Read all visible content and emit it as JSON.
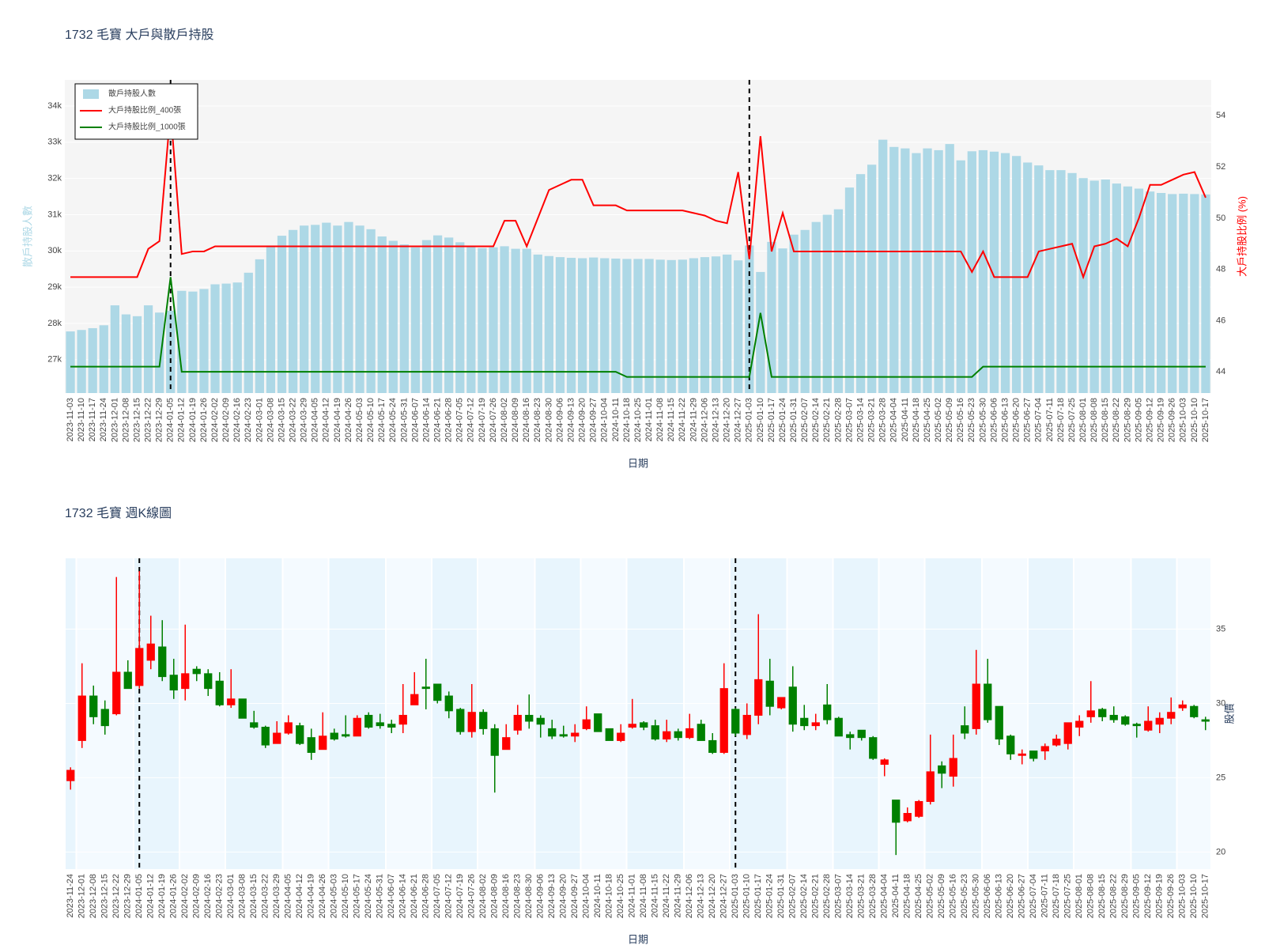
{
  "chart_data": [
    {
      "type": "bar_line",
      "title": "1732 毛寶 大戶與散戶持股",
      "x_label": "日期",
      "y_label": "散戶持股人數",
      "y2_label": "大戶持股比例 (%)",
      "categories": [
        "2023-11-03",
        "2023-11-10",
        "2023-11-17",
        "2023-11-24",
        "2023-12-01",
        "2023-12-08",
        "2023-12-15",
        "2023-12-22",
        "2023-12-29",
        "2024-01-05",
        "2024-01-12",
        "2024-01-19",
        "2024-01-26",
        "2024-02-02",
        "2024-02-09",
        "2024-02-16",
        "2024-02-23",
        "2024-03-01",
        "2024-03-08",
        "2024-03-15",
        "2024-03-22",
        "2024-03-29",
        "2024-04-05",
        "2024-04-12",
        "2024-04-19",
        "2024-04-26",
        "2024-05-03",
        "2024-05-10",
        "2024-05-17",
        "2024-05-24",
        "2024-05-31",
        "2024-06-07",
        "2024-06-14",
        "2024-06-21",
        "2024-06-28",
        "2024-07-05",
        "2024-07-12",
        "2024-07-19",
        "2024-07-26",
        "2024-08-02",
        "2024-08-09",
        "2024-08-16",
        "2024-08-23",
        "2024-08-30",
        "2024-09-06",
        "2024-09-13",
        "2024-09-20",
        "2024-09-27",
        "2024-10-04",
        "2024-10-11",
        "2024-10-18",
        "2024-10-25",
        "2024-11-01",
        "2024-11-08",
        "2024-11-15",
        "2024-11-22",
        "2024-11-29",
        "2024-12-06",
        "2024-12-13",
        "2024-12-20",
        "2024-12-27",
        "2025-01-03",
        "2025-01-10",
        "2025-01-17",
        "2025-01-24",
        "2025-01-31",
        "2025-02-07",
        "2025-02-14",
        "2025-02-21",
        "2025-02-28",
        "2025-03-07",
        "2025-03-14",
        "2025-03-21",
        "2025-03-28",
        "2025-04-04",
        "2025-04-11",
        "2025-04-18",
        "2025-04-25",
        "2025-05-02",
        "2025-05-09",
        "2025-05-16",
        "2025-05-23",
        "2025-05-30",
        "2025-06-06",
        "2025-06-13",
        "2025-06-20",
        "2025-06-27",
        "2025-07-04",
        "2025-07-11",
        "2025-07-18",
        "2025-07-25",
        "2025-08-01",
        "2025-08-08",
        "2025-08-15",
        "2025-08-22",
        "2025-08-29",
        "2025-09-05",
        "2025-09-12",
        "2025-09-19",
        "2025-09-26",
        "2025-10-03",
        "2025-10-10",
        "2025-10-17"
      ],
      "series": [
        {
          "name": "散戶持股人數",
          "type": "bar",
          "color": "#add8e6",
          "values": [
            27780,
            27820,
            27870,
            27950,
            28500,
            28250,
            28200,
            28500,
            28300,
            28350,
            28900,
            28880,
            28950,
            29080,
            29100,
            29130,
            29400,
            29770,
            30150,
            30420,
            30580,
            30700,
            30720,
            30780,
            30700,
            30800,
            30700,
            30600,
            30400,
            30280,
            30180,
            30100,
            30300,
            30430,
            30370,
            30240,
            30120,
            30080,
            30100,
            30130,
            30060,
            30060,
            29900,
            29860,
            29830,
            29810,
            29800,
            29820,
            29800,
            29790,
            29780,
            29780,
            29780,
            29760,
            29750,
            29760,
            29800,
            29830,
            29850,
            29900,
            29740,
            30150,
            29420,
            30250,
            30070,
            30450,
            30580,
            30800,
            31000,
            31150,
            31750,
            32120,
            32380,
            33070,
            32870,
            32830,
            32700,
            32830,
            32780,
            32950,
            32500,
            32750,
            32780,
            32740,
            32700,
            32620,
            32440,
            32360,
            32230,
            32230,
            32150,
            32010,
            31940,
            31970,
            31860,
            31780,
            31720,
            31640,
            31600,
            31570,
            31580,
            31570,
            31560
          ]
        },
        {
          "name": "大戶持股比例_400張",
          "type": "line",
          "axis": "y2",
          "color": "#ff0000",
          "values": [
            47.7,
            47.7,
            47.7,
            47.7,
            47.7,
            47.7,
            47.7,
            48.8,
            49.1,
            54.2,
            48.6,
            48.7,
            48.7,
            48.9,
            48.9,
            48.9,
            48.9,
            48.9,
            48.9,
            48.9,
            48.9,
            48.9,
            48.9,
            48.9,
            48.9,
            48.9,
            48.9,
            48.9,
            48.9,
            48.9,
            48.9,
            48.9,
            48.9,
            48.9,
            48.9,
            48.9,
            48.9,
            48.9,
            48.9,
            49.9,
            49.9,
            48.9,
            50.0,
            51.1,
            51.3,
            51.5,
            51.5,
            50.5,
            50.5,
            50.5,
            50.3,
            50.3,
            50.3,
            50.3,
            50.3,
            50.3,
            50.2,
            50.1,
            49.9,
            49.8,
            51.8,
            48.4,
            53.2,
            48.7,
            50.2,
            48.7,
            48.7,
            48.7,
            48.7,
            48.7,
            48.7,
            48.7,
            48.7,
            48.7,
            48.7,
            48.7,
            48.7,
            48.7,
            48.7,
            48.7,
            48.7,
            47.9,
            48.7,
            47.7,
            47.7,
            47.7,
            47.7,
            48.7,
            48.8,
            48.9,
            49.0,
            47.7,
            48.9,
            49.0,
            49.2,
            48.9,
            50.0,
            51.3,
            51.3,
            51.5,
            51.7,
            51.8,
            50.8
          ]
        },
        {
          "name": "大戶持股比例_1000張",
          "type": "line",
          "axis": "y2",
          "color": "#008000",
          "values": [
            44.2,
            44.2,
            44.2,
            44.2,
            44.2,
            44.2,
            44.2,
            44.2,
            44.2,
            47.7,
            44.0,
            44.0,
            44.0,
            44.0,
            44.0,
            44.0,
            44.0,
            44.0,
            44.0,
            44.0,
            44.0,
            44.0,
            44.0,
            44.0,
            44.0,
            44.0,
            44.0,
            44.0,
            44.0,
            44.0,
            44.0,
            44.0,
            44.0,
            44.0,
            44.0,
            44.0,
            44.0,
            44.0,
            44.0,
            44.0,
            44.0,
            44.0,
            44.0,
            44.0,
            44.0,
            44.0,
            44.0,
            44.0,
            44.0,
            44.0,
            43.8,
            43.8,
            43.8,
            43.8,
            43.8,
            43.8,
            43.8,
            43.8,
            43.8,
            43.8,
            43.8,
            43.8,
            46.3,
            43.8,
            43.8,
            43.8,
            43.8,
            43.8,
            43.8,
            43.8,
            43.8,
            43.8,
            43.8,
            43.8,
            43.8,
            43.8,
            43.8,
            43.8,
            43.8,
            43.8,
            43.8,
            43.8,
            44.2,
            44.2,
            44.2,
            44.2,
            44.2,
            44.2,
            44.2,
            44.2,
            44.2,
            44.2,
            44.2,
            44.2,
            44.2,
            44.2,
            44.2,
            44.2,
            44.2,
            44.2,
            44.2,
            44.2,
            44.2
          ]
        }
      ],
      "ylim": [
        26080,
        34720
      ],
      "yticks": [
        {
          "value": 27000,
          "label": "27k"
        },
        {
          "value": 28000,
          "label": "28k"
        },
        {
          "value": 29000,
          "label": "29k"
        },
        {
          "value": 30000,
          "label": "30k"
        },
        {
          "value": 31000,
          "label": "31k"
        },
        {
          "value": 32000,
          "label": "32k"
        },
        {
          "value": 33000,
          "label": "33k"
        },
        {
          "value": 34000,
          "label": "34k"
        }
      ],
      "y2lim": [
        43.17,
        55.4
      ],
      "y2ticks": [
        44,
        46,
        48,
        50,
        52,
        54
      ],
      "vlines": [
        "2024-01-05",
        "2025-01-03"
      ],
      "legend": "top-left",
      "grid": true
    },
    {
      "type": "candlestick",
      "title": "1732 毛寶 週K線圖",
      "x_label": "日期",
      "y_label": "股價",
      "categories": [
        "2023-11-24",
        "2023-12-01",
        "2023-12-08",
        "2023-12-15",
        "2023-12-22",
        "2023-12-29",
        "2024-01-05",
        "2024-01-12",
        "2024-01-19",
        "2024-01-26",
        "2024-02-02",
        "2024-02-09",
        "2024-02-16",
        "2024-02-23",
        "2024-03-01",
        "2024-03-08",
        "2024-03-15",
        "2024-03-22",
        "2024-03-29",
        "2024-04-05",
        "2024-04-12",
        "2024-04-19",
        "2024-04-26",
        "2024-05-03",
        "2024-05-10",
        "2024-05-17",
        "2024-05-24",
        "2024-05-31",
        "2024-06-07",
        "2024-06-14",
        "2024-06-21",
        "2024-06-28",
        "2024-07-05",
        "2024-07-12",
        "2024-07-19",
        "2024-07-26",
        "2024-08-02",
        "2024-08-09",
        "2024-08-16",
        "2024-08-23",
        "2024-08-30",
        "2024-09-06",
        "2024-09-13",
        "2024-09-20",
        "2024-09-27",
        "2024-10-04",
        "2024-10-11",
        "2024-10-18",
        "2024-10-25",
        "2024-11-01",
        "2024-11-08",
        "2024-11-15",
        "2024-11-22",
        "2024-11-29",
        "2024-12-06",
        "2024-12-13",
        "2024-12-20",
        "2024-12-27",
        "2025-01-03",
        "2025-01-10",
        "2025-01-17",
        "2025-01-24",
        "2025-01-31",
        "2025-02-07",
        "2025-02-14",
        "2025-02-21",
        "2025-02-28",
        "2025-03-07",
        "2025-03-14",
        "2025-03-21",
        "2025-03-28",
        "2025-04-04",
        "2025-04-11",
        "2025-04-18",
        "2025-04-25",
        "2025-05-02",
        "2025-05-09",
        "2025-05-16",
        "2025-05-23",
        "2025-05-30",
        "2025-06-06",
        "2025-06-13",
        "2025-06-20",
        "2025-06-27",
        "2025-07-04",
        "2025-07-11",
        "2025-07-18",
        "2025-07-25",
        "2025-08-01",
        "2025-08-08",
        "2025-08-15",
        "2025-08-22",
        "2025-08-29",
        "2025-09-05",
        "2025-09-12",
        "2025-09-19",
        "2025-09-26",
        "2025-10-03",
        "2025-10-10",
        "2025-10-17"
      ],
      "open": [
        24.8,
        27.5,
        30.5,
        29.6,
        29.3,
        32.1,
        31.2,
        32.9,
        33.8,
        31.9,
        31.0,
        32.3,
        32.0,
        31.5,
        29.9,
        30.3,
        28.7,
        28.4,
        27.3,
        28.0,
        28.5,
        27.7,
        26.9,
        28.0,
        27.9,
        27.8,
        29.2,
        28.7,
        28.6,
        28.6,
        29.9,
        31.1,
        31.3,
        30.5,
        29.6,
        28.1,
        29.4,
        28.3,
        26.9,
        28.2,
        29.2,
        29.0,
        28.3,
        27.9,
        27.8,
        28.3,
        29.3,
        28.3,
        27.5,
        28.4,
        28.7,
        28.5,
        27.6,
        28.1,
        27.7,
        28.6,
        27.5,
        26.7,
        29.6,
        27.9,
        29.2,
        31.5,
        29.7,
        31.1,
        29.0,
        28.5,
        29.9,
        29.0,
        27.9,
        28.2,
        27.7,
        25.9,
        23.5,
        22.1,
        22.4,
        23.4,
        25.8,
        25.1,
        28.5,
        28.3,
        31.3,
        29.8,
        27.8,
        26.5,
        26.8,
        26.8,
        27.2,
        27.3,
        28.4,
        29.1,
        29.6,
        29.2,
        29.1,
        28.6,
        28.2,
        28.6,
        29.0,
        29.7,
        29.8,
        28.9
      ],
      "high": [
        25.7,
        32.7,
        31.2,
        30.2,
        38.5,
        32.9,
        38.9,
        35.9,
        35.6,
        33.0,
        35.3,
        32.5,
        32.3,
        32.1,
        32.3,
        30.3,
        29.5,
        28.5,
        28.8,
        29.2,
        28.7,
        28.3,
        29.4,
        28.3,
        29.2,
        29.2,
        29.4,
        29.3,
        28.9,
        31.3,
        32.1,
        33.0,
        31.3,
        30.8,
        29.7,
        31.3,
        29.6,
        28.6,
        28.6,
        29.9,
        30.6,
        29.2,
        28.9,
        28.5,
        28.6,
        29.8,
        29.3,
        28.3,
        28.6,
        30.3,
        28.8,
        28.9,
        28.9,
        28.3,
        29.3,
        28.9,
        28.0,
        32.7,
        29.7,
        30.0,
        36.0,
        33.0,
        30.4,
        32.5,
        29.9,
        29.3,
        31.3,
        29.1,
        28.1,
        28.2,
        27.8,
        26.3,
        23.5,
        23.0,
        23.5,
        27.9,
        26.1,
        27.9,
        29.8,
        33.6,
        33.0,
        29.8,
        27.9,
        26.9,
        26.8,
        27.3,
        27.9,
        28.7,
        29.2,
        31.5,
        29.7,
        29.8,
        29.2,
        28.7,
        29.8,
        29.4,
        30.4,
        30.2,
        29.9,
        29.1
      ],
      "low": [
        24.2,
        27.0,
        28.6,
        27.9,
        29.2,
        31.0,
        31.0,
        32.3,
        31.5,
        30.3,
        30.2,
        31.5,
        30.5,
        29.8,
        29.7,
        29.0,
        28.3,
        27.0,
        27.3,
        27.9,
        27.2,
        26.2,
        26.9,
        27.5,
        27.7,
        27.8,
        28.3,
        28.3,
        28.0,
        28.0,
        29.9,
        29.6,
        30.0,
        29.0,
        27.9,
        27.7,
        27.9,
        24.0,
        26.9,
        27.9,
        28.3,
        27.7,
        27.6,
        27.7,
        27.4,
        28.2,
        28.1,
        27.5,
        27.4,
        28.3,
        28.2,
        27.5,
        27.4,
        27.5,
        27.6,
        27.5,
        26.6,
        26.6,
        27.8,
        27.6,
        28.6,
        29.2,
        29.6,
        28.1,
        28.2,
        28.2,
        28.6,
        27.8,
        26.9,
        27.5,
        26.2,
        25.1,
        19.8,
        22.0,
        22.3,
        23.2,
        24.3,
        24.4,
        27.6,
        27.9,
        28.7,
        27.2,
        26.2,
        25.9,
        26.1,
        26.2,
        27.1,
        26.9,
        27.8,
        28.7,
        28.8,
        28.7,
        28.5,
        27.7,
        28.1,
        28.0,
        28.6,
        29.5,
        29.0,
        28.2
      ],
      "close": [
        25.5,
        30.5,
        29.1,
        28.5,
        32.1,
        31.0,
        33.7,
        34.0,
        31.8,
        30.9,
        32.0,
        32.0,
        31.0,
        29.9,
        30.3,
        29.0,
        28.4,
        27.2,
        28.0,
        28.7,
        27.3,
        26.7,
        27.8,
        27.6,
        27.8,
        29.0,
        28.4,
        28.5,
        28.4,
        29.2,
        30.6,
        31.0,
        30.2,
        29.5,
        28.1,
        29.4,
        28.3,
        26.5,
        27.7,
        29.2,
        28.8,
        28.6,
        27.8,
        27.8,
        28.0,
        28.9,
        28.1,
        27.5,
        28.0,
        28.6,
        28.4,
        27.6,
        28.1,
        27.7,
        28.3,
        27.5,
        26.7,
        31.0,
        28.0,
        29.2,
        31.6,
        29.8,
        30.4,
        28.6,
        28.5,
        28.7,
        28.9,
        27.8,
        27.7,
        27.7,
        26.3,
        26.2,
        22.0,
        22.6,
        23.4,
        25.4,
        25.3,
        26.3,
        28.0,
        31.3,
        28.9,
        27.6,
        26.6,
        26.6,
        26.3,
        27.1,
        27.6,
        28.7,
        28.8,
        29.5,
        29.1,
        28.9,
        28.6,
        28.5,
        28.8,
        29.0,
        29.4,
        29.9,
        29.1,
        28.8
      ],
      "increasing_color": "#ff0000",
      "decreasing_color": "#008000",
      "ylim": [
        18.85,
        39.76
      ],
      "yticks": [
        20,
        25,
        30,
        35
      ],
      "vlines": [
        "2024-01-05",
        "2025-01-03"
      ],
      "month_shading": [
        "#e8f5fd",
        "#f4faff"
      ],
      "grid": true
    }
  ]
}
